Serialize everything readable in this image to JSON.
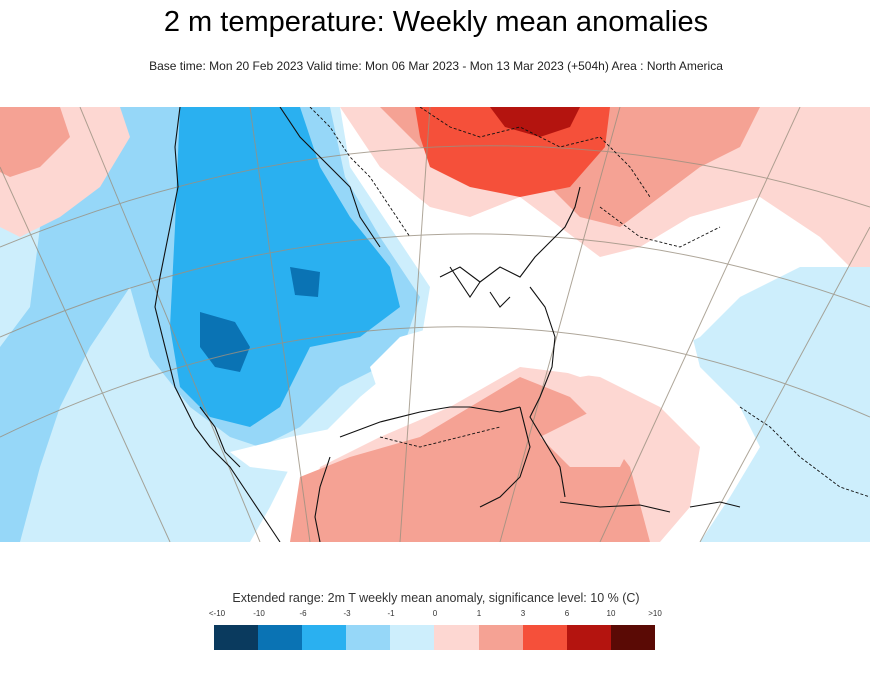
{
  "header": {
    "title": "2 m temperature: Weekly mean anomalies",
    "subtitle": "Base time: Mon 20 Feb 2023 Valid time: Mon 06 Mar 2023 - Mon 13 Mar 2023 (+504h) Area : North America"
  },
  "legend": {
    "title": "Extended range: 2m T weekly mean anomaly, significance level: 10 % (C)",
    "ticks": [
      "<-10",
      "-10",
      "-6",
      "-3",
      "-1",
      "0",
      "1",
      "3",
      "6",
      "10",
      ">10"
    ],
    "colors": [
      "#0a3a5e",
      "#0a73b4",
      "#2ab0f0",
      "#96d7f8",
      "#cdeefc",
      "#fdd7d2",
      "#f5a294",
      "#f5503a",
      "#b4140f",
      "#5a0a05"
    ]
  },
  "map": {
    "area": "North America",
    "colors": {
      "white": "#ffffff",
      "light_blue": "#cdeefc",
      "mid_blue": "#96d7f8",
      "blue": "#2ab0f0",
      "dark_blue": "#0a73b4",
      "light_red": "#fdd7d2",
      "mid_red": "#f5a294",
      "red": "#f5503a",
      "dark_red": "#b4140f",
      "graticule": "#9a9080",
      "coast": "#111111"
    }
  }
}
